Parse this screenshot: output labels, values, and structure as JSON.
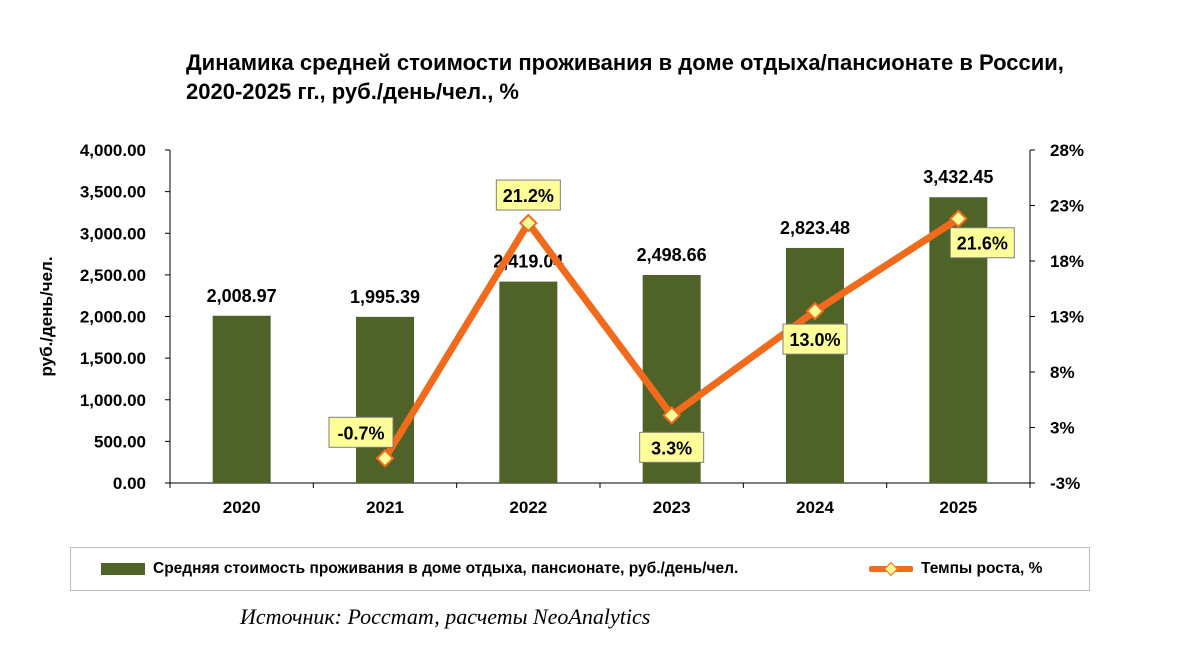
{
  "title": "Динамика средней стоимости проживания в доме отдыха/пансионате в России, 2020-2025 гг., руб./день/чел., %",
  "source": "Источник: Росстат, расчеты NeoAnalytics",
  "colors": {
    "bar": "#4f6228",
    "line": "#f26a1b",
    "marker_fill": "#ffff99",
    "label_box_fill": "#ffff99"
  },
  "legend": {
    "bar_label": "Средняя стоимость проживания в доме отдыха, пансионате, руб./день/чел.",
    "line_label": "Темпы роста, %"
  },
  "chart_data": {
    "type": "bar+line",
    "categories": [
      "2020",
      "2021",
      "2022",
      "2023",
      "2024",
      "2025"
    ],
    "series": [
      {
        "name": "Средняя стоимость проживания в доме отдыха, пансионате, руб./день/чел.",
        "type": "bar",
        "axis": "left",
        "values": [
          2008.97,
          1995.39,
          2419.04,
          2498.66,
          2823.48,
          3432.45
        ],
        "labels": [
          "2,008.97",
          "1,995.39",
          "2,419.04",
          "2,498.66",
          "2,823.48",
          "3,432.45"
        ]
      },
      {
        "name": "Темпы роста, %",
        "type": "line",
        "axis": "right",
        "values": [
          null,
          -0.7,
          21.2,
          3.3,
          13.0,
          21.6
        ],
        "labels": [
          null,
          "-0.7%",
          "21.2%",
          "3.3%",
          "13.0%",
          "21.6%"
        ]
      }
    ],
    "ylabel": "руб./день/чел.",
    "ylim": [
      0,
      4000
    ],
    "yticks": [
      "0.00",
      "500.00",
      "1,000.00",
      "1,500.00",
      "2,000.00",
      "2,500.00",
      "3,000.00",
      "3,500.00",
      "4,000.00"
    ],
    "y2lim": [
      -3,
      28
    ],
    "y2ticks": [
      "-3%",
      "3%",
      "8%",
      "13%",
      "18%",
      "23%",
      "28%"
    ],
    "grid": false,
    "legend_position": "bottom"
  }
}
